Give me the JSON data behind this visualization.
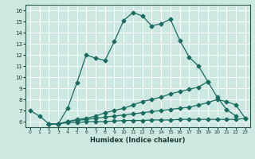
{
  "xlabel": "Humidex (Indice chaleur)",
  "xlim": [
    -0.5,
    23.5
  ],
  "ylim": [
    5.5,
    16.5
  ],
  "xticks": [
    0,
    1,
    2,
    3,
    4,
    5,
    6,
    7,
    8,
    9,
    10,
    11,
    12,
    13,
    14,
    15,
    16,
    17,
    18,
    19,
    20,
    21,
    22,
    23
  ],
  "yticks": [
    6,
    7,
    8,
    9,
    10,
    11,
    12,
    13,
    14,
    15,
    16
  ],
  "bg_color": "#cde8e0",
  "line_color": "#1a6b60",
  "line1_x": [
    0,
    1,
    2,
    3,
    4,
    5,
    6,
    7,
    8,
    9,
    10,
    11,
    12,
    13,
    14,
    15,
    16,
    17,
    18,
    19
  ],
  "line1_y": [
    7.0,
    6.5,
    5.8,
    5.8,
    7.2,
    9.5,
    12.0,
    11.7,
    11.5,
    13.2,
    15.1,
    15.8,
    15.5,
    14.6,
    14.8,
    15.2,
    13.3,
    11.8,
    11.0,
    9.6
  ],
  "line2_x": [
    2,
    3,
    4,
    5,
    6,
    7,
    8,
    9,
    10,
    11,
    12,
    13,
    14,
    15,
    16,
    17,
    18,
    19,
    20,
    21,
    22
  ],
  "line2_y": [
    5.8,
    5.8,
    6.0,
    6.2,
    6.3,
    6.5,
    6.8,
    7.0,
    7.2,
    7.5,
    7.8,
    8.0,
    8.2,
    8.5,
    8.7,
    8.9,
    9.1,
    9.6,
    8.2,
    7.1,
    6.5
  ],
  "line3_x": [
    2,
    3,
    4,
    5,
    6,
    7,
    8,
    9,
    10,
    11,
    12,
    13,
    14,
    15,
    16,
    17,
    18,
    19,
    20,
    21,
    22,
    23
  ],
  "line3_y": [
    5.8,
    5.8,
    6.0,
    6.1,
    6.2,
    6.3,
    6.4,
    6.5,
    6.6,
    6.7,
    6.8,
    6.9,
    7.0,
    7.1,
    7.2,
    7.3,
    7.5,
    7.7,
    8.0,
    7.8,
    7.5,
    6.3
  ],
  "line4_x": [
    2,
    3,
    4,
    5,
    6,
    7,
    8,
    9,
    10,
    11,
    12,
    13,
    14,
    15,
    16,
    17,
    18,
    19,
    20,
    21,
    22,
    23
  ],
  "line4_y": [
    5.8,
    5.8,
    5.9,
    5.9,
    6.0,
    6.0,
    6.0,
    6.05,
    6.1,
    6.1,
    6.1,
    6.15,
    6.15,
    6.15,
    6.2,
    6.2,
    6.2,
    6.2,
    6.2,
    6.2,
    6.2,
    6.3
  ]
}
